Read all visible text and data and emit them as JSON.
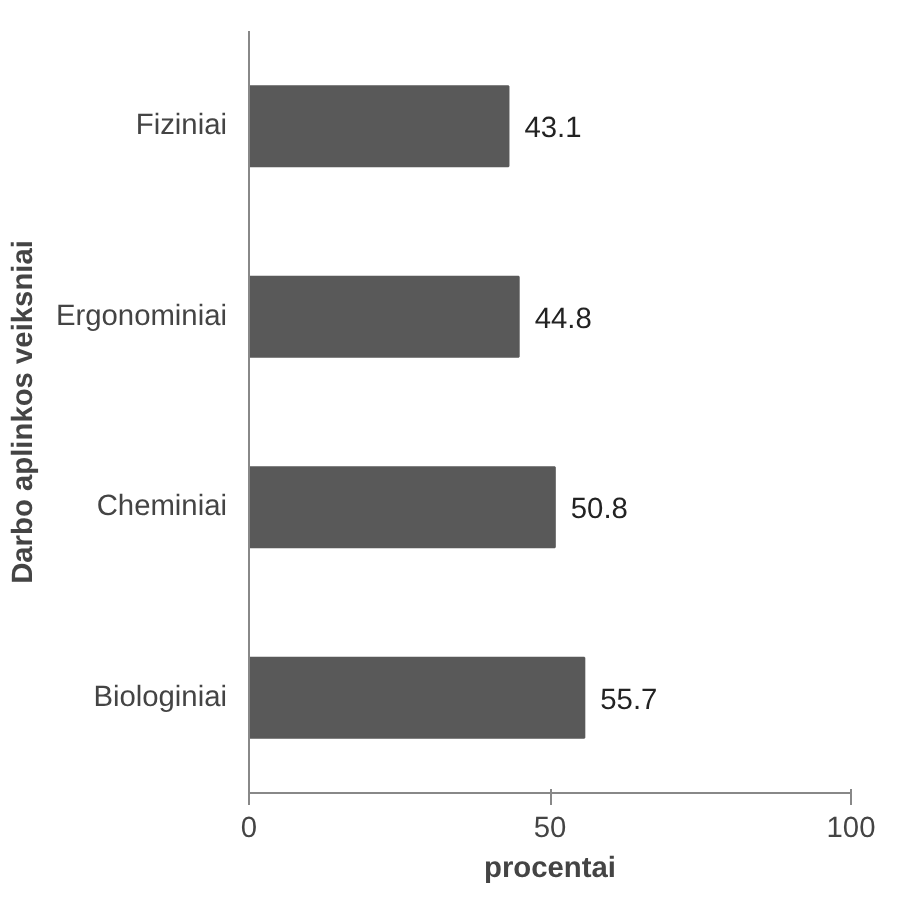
{
  "chart_data": {
    "type": "bar",
    "orientation": "horizontal",
    "categories": [
      "Fiziniai",
      "Ergonominiai",
      "Cheminiai",
      "Biologiniai"
    ],
    "values": [
      43.1,
      44.8,
      50.8,
      55.7
    ],
    "color": "#595959",
    "xlim": [
      0,
      100
    ],
    "xticks": [
      0,
      50,
      100
    ],
    "xlabel": "procentai",
    "ylabel": "Darbo aplinkos veiksniai",
    "data_labels": true,
    "grid": false
  }
}
